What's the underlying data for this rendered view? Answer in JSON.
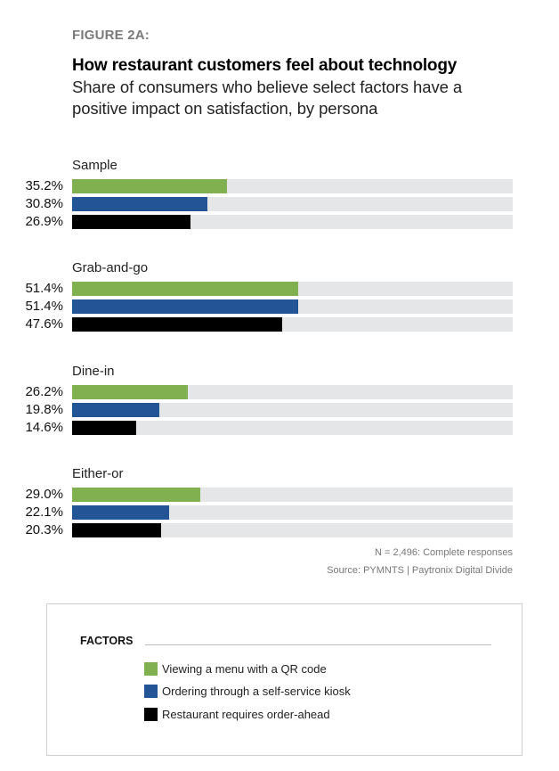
{
  "figure_label": "FIGURE 2A:",
  "title": "How restaurant customers feel about technology",
  "subtitle_lines": [
    "Share of consumers who believe select factors have a",
    "positive impact on satisfaction, by persona"
  ],
  "colors": {
    "qr": "#80b050",
    "kiosk": "#235496",
    "order_ahead": "#000000",
    "track": "#e5e6e7"
  },
  "notes": {
    "n": "N = 2,496: Complete responses",
    "source": "Source: PYMNTS | Paytronix   Digital Divide"
  },
  "legend": {
    "title": "FACTORS",
    "items": [
      {
        "label": "Viewing a menu with a QR code",
        "color_key": "qr"
      },
      {
        "label": "Ordering through a self-service kiosk",
        "color_key": "kiosk"
      },
      {
        "label": "Restaurant requires order-ahead",
        "color_key": "order_ahead"
      }
    ]
  },
  "chart_data": {
    "type": "bar",
    "orientation": "horizontal",
    "title": "How restaurant customers feel about technology",
    "subtitle": "Share of consumers who believe select factors have a positive impact on satisfaction, by persona",
    "xlabel": "",
    "ylabel": "",
    "xlim": [
      0,
      100
    ],
    "unit": "%",
    "grid": false,
    "legend_position": "bottom",
    "categories": [
      "Sample",
      "Grab-and-go",
      "Dine-in",
      "Either-or"
    ],
    "series": [
      {
        "name": "Viewing a menu with a QR code",
        "color_key": "qr",
        "values": [
          35.2,
          51.4,
          26.2,
          29.0
        ],
        "labels": [
          "35.2%",
          "51.4%",
          "26.2%",
          "29.0%"
        ]
      },
      {
        "name": "Ordering through a self-service kiosk",
        "color_key": "kiosk",
        "values": [
          30.8,
          51.4,
          19.8,
          22.1
        ],
        "labels": [
          "30.8%",
          "51.4%",
          "19.8%",
          "22.1%"
        ]
      },
      {
        "name": "Restaurant requires order-ahead",
        "color_key": "order_ahead",
        "values": [
          26.9,
          47.6,
          14.6,
          20.3
        ],
        "labels": [
          "26.9%",
          "47.6%",
          "14.6%",
          "20.3%"
        ]
      }
    ]
  }
}
